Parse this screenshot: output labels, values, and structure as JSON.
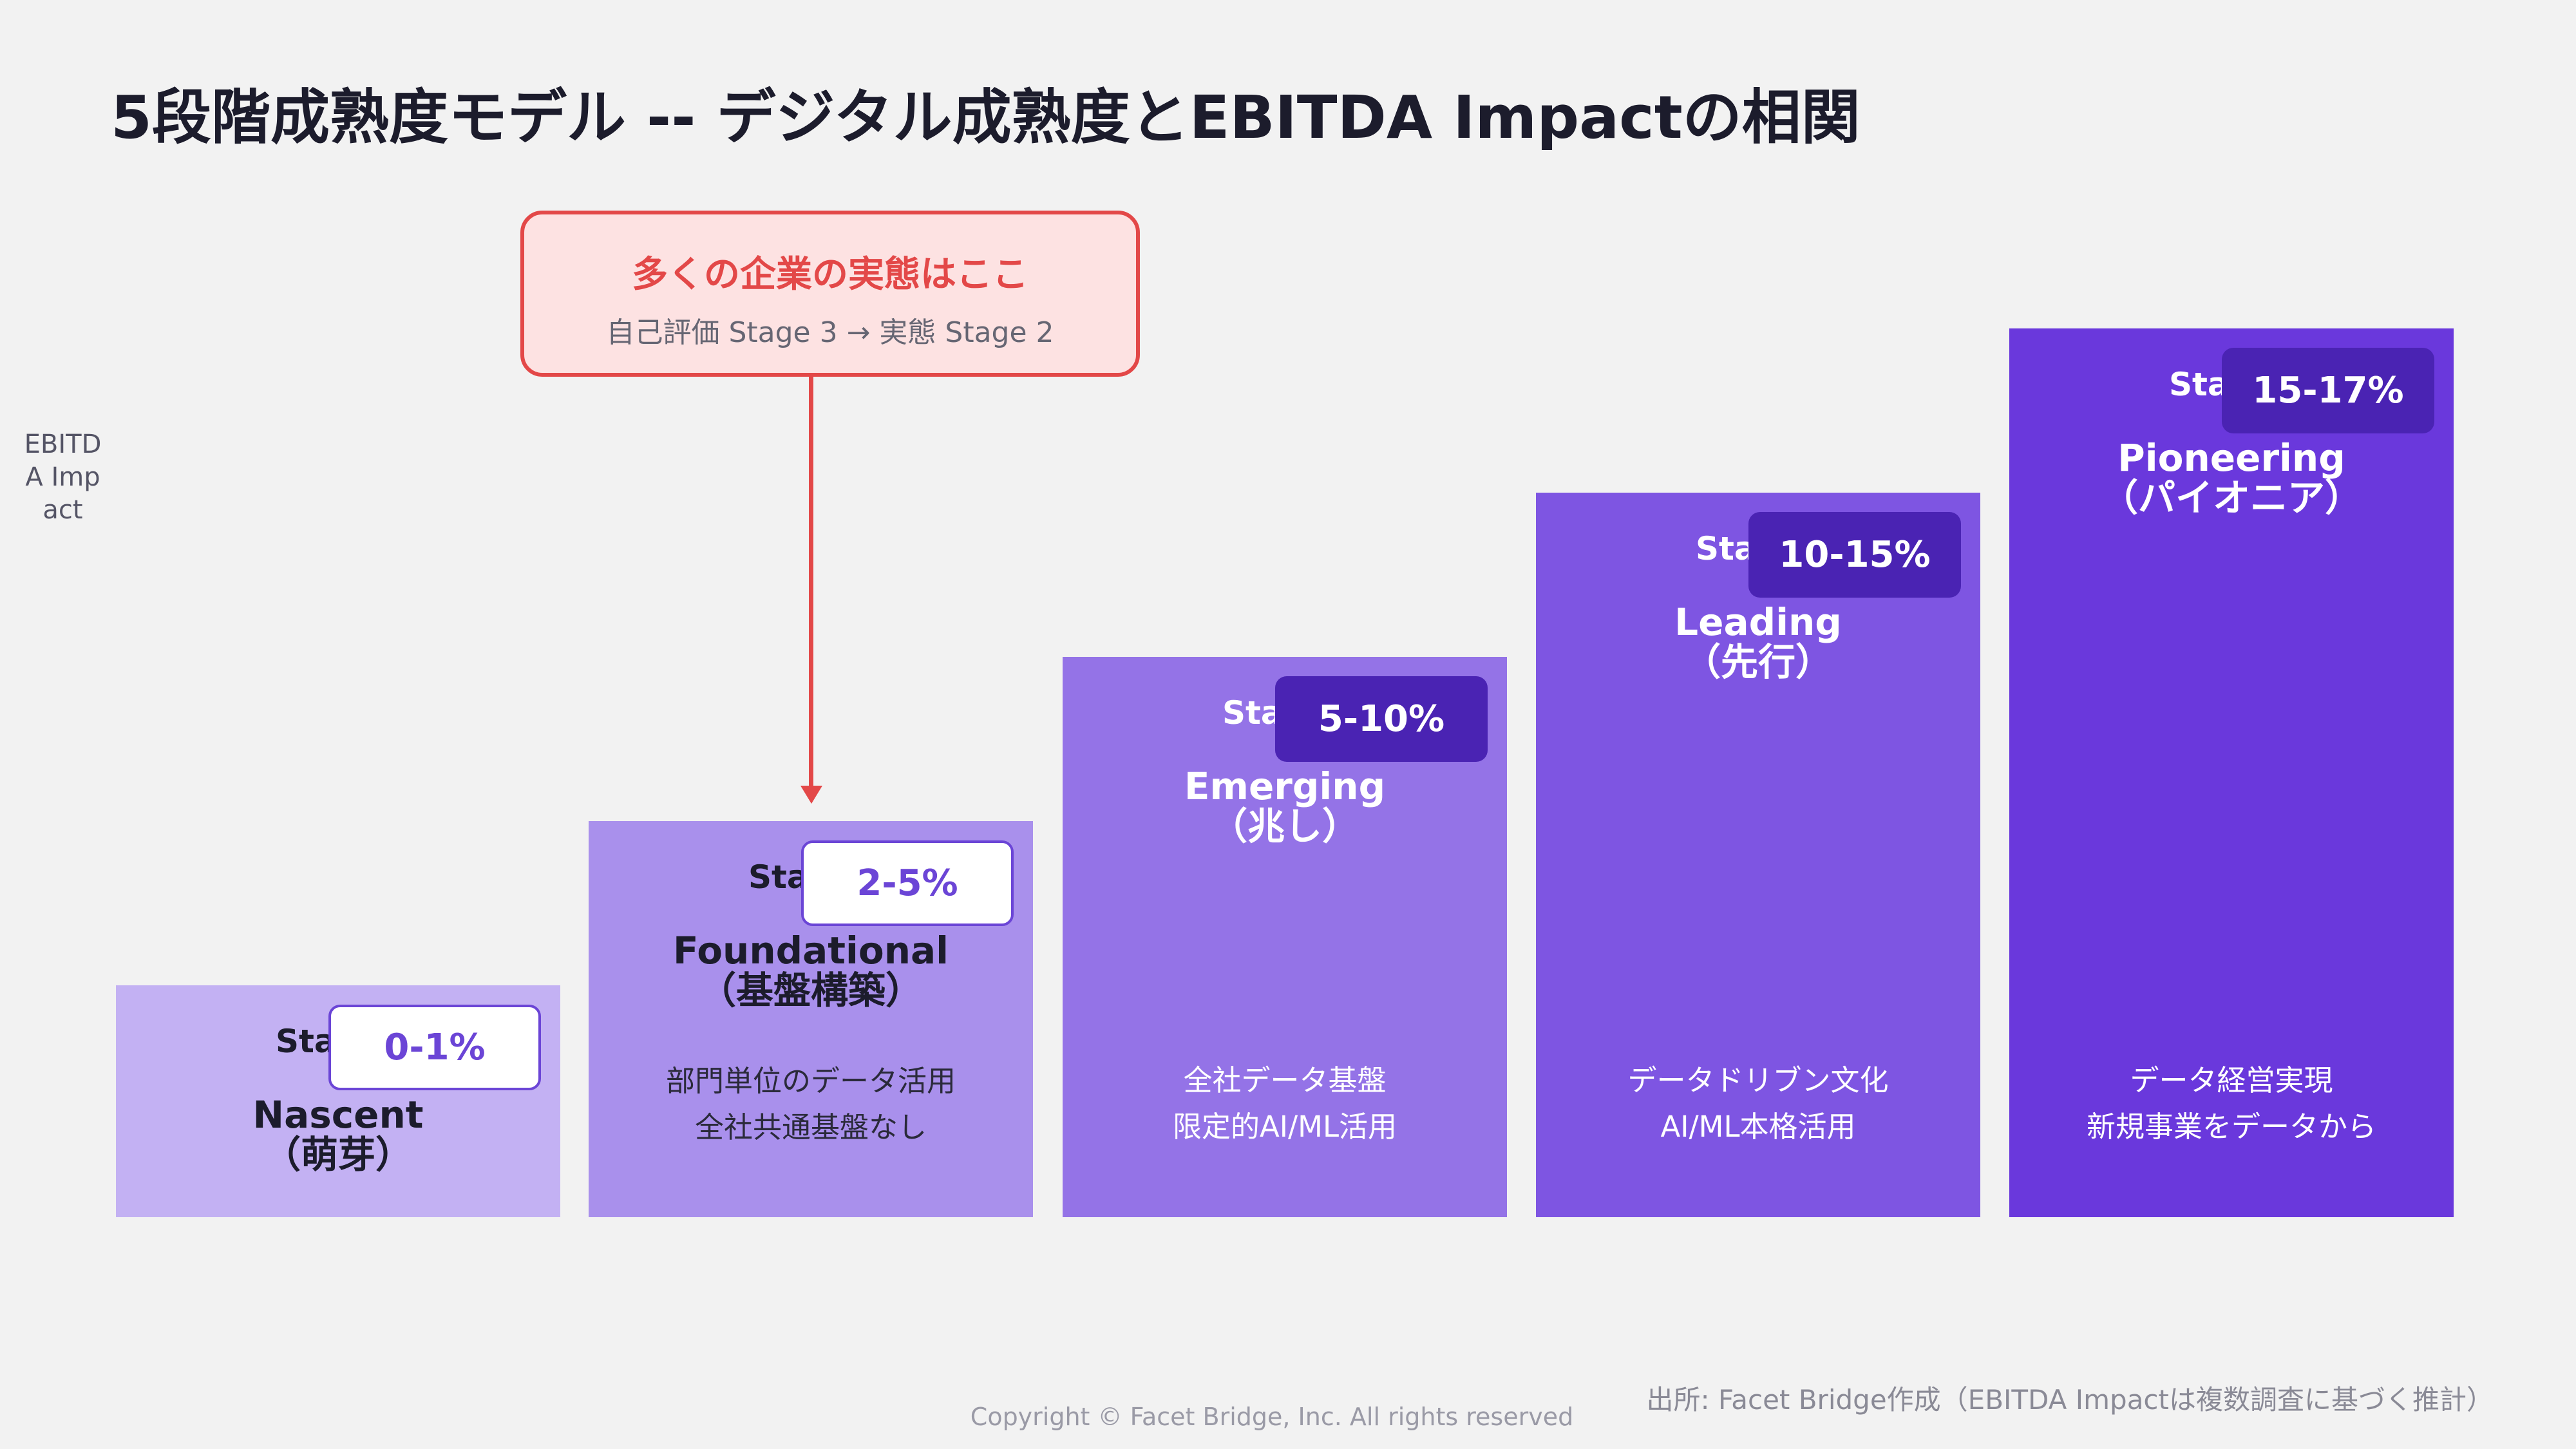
{
  "title": "5段階成熟度モデル -- デジタル成熟度とEBITDA Impactの相関",
  "y_axis_label": "EBITDA Impact",
  "callout": {
    "title": "多くの企業の実態はここ",
    "subtitle": "自己評価 Stage 3 → 実態 Stage 2"
  },
  "stages": [
    {
      "prefix": "Sta",
      "impact": "0-1%",
      "name": "Nascent",
      "name_ja": "（萌芽）",
      "desc1": "",
      "desc2": "",
      "color": "#c3b1f3"
    },
    {
      "prefix": "Sta",
      "impact": "2-5%",
      "name": "Foundational",
      "name_ja": "（基盤構築）",
      "desc1": "部門単位のデータ活用",
      "desc2": "全社共通基盤なし",
      "color": "#a990ec"
    },
    {
      "prefix": "Sta",
      "impact": "5-10%",
      "name": "Emerging",
      "name_ja": "（兆し）",
      "desc1": "全社データ基盤",
      "desc2": "限定的AI/ML活用",
      "color": "#9473e7"
    },
    {
      "prefix": "Sta",
      "impact": "10-15%",
      "name": "Leading",
      "name_ja": "（先行）",
      "desc1": "データドリブン文化",
      "desc2": "AI/ML本格活用",
      "color": "#7e55e2"
    },
    {
      "prefix": "Sta",
      "impact": "15-17%",
      "name": "Pioneering",
      "name_ja": "（パイオニア）",
      "desc1": "データ経営実現",
      "desc2": "新規事業をデータから",
      "color": "#6a38dc"
    }
  ],
  "source": "出所: Facet Bridge作成（EBITDA Impactは複数調査に基づく推計）",
  "copyright": "Copyright © Facet Bridge, Inc. All rights reserved"
}
